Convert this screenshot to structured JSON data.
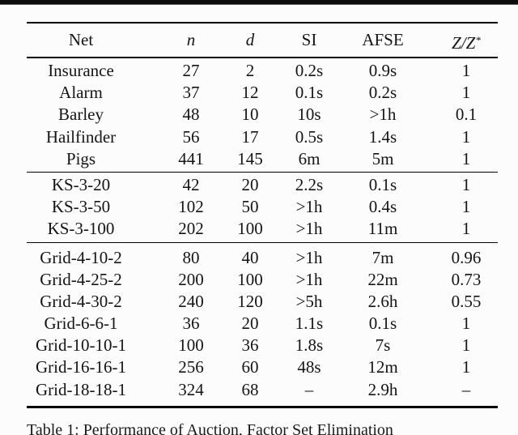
{
  "table": {
    "headers": [
      {
        "text": "Net",
        "style": "roman"
      },
      {
        "text": "n",
        "style": "italic"
      },
      {
        "text": "d",
        "style": "italic"
      },
      {
        "text": "SI",
        "style": "roman"
      },
      {
        "text": "AFSE",
        "style": "roman"
      },
      {
        "text": "Z/Z",
        "style": "italic",
        "sup": "*"
      }
    ],
    "groups": [
      {
        "rows": [
          [
            "Insurance",
            "27",
            "2",
            "0.2s",
            "0.9s",
            "1"
          ],
          [
            "Alarm",
            "37",
            "12",
            "0.1s",
            "0.2s",
            "1"
          ],
          [
            "Barley",
            "48",
            "10",
            "10s",
            ">1h",
            "0.1"
          ],
          [
            "Hailfinder",
            "56",
            "17",
            "0.5s",
            "1.4s",
            "1"
          ],
          [
            "Pigs",
            "441",
            "145",
            "6m",
            "5m",
            "1"
          ]
        ]
      },
      {
        "rows": [
          [
            "KS-3-20",
            "42",
            "20",
            "2.2s",
            "0.1s",
            "1"
          ],
          [
            "KS-3-50",
            "102",
            "50",
            ">1h",
            "0.4s",
            "1"
          ],
          [
            "KS-3-100",
            "202",
            "100",
            ">1h",
            "11m",
            "1"
          ]
        ]
      },
      {
        "rows": [
          [
            "Grid-4-10-2",
            "80",
            "40",
            ">1h",
            "7m",
            "0.96"
          ],
          [
            "Grid-4-25-2",
            "200",
            "100",
            ">1h",
            "22m",
            "0.73"
          ],
          [
            "Grid-4-30-2",
            "240",
            "120",
            ">5h",
            "2.6h",
            "0.55"
          ],
          [
            "Grid-6-6-1",
            "36",
            "20",
            "1.1s",
            "0.1s",
            "1"
          ],
          [
            "Grid-10-10-1",
            "100",
            "36",
            "1.8s",
            "7s",
            "1"
          ],
          [
            "Grid-16-16-1",
            "256",
            "60",
            "48s",
            "12m",
            "1"
          ],
          [
            "Grid-18-18-1",
            "324",
            "68",
            "–",
            "2.9h",
            "–"
          ]
        ]
      }
    ]
  },
  "caption": {
    "text": "Table 1: Performance of Auction, Factor Set Elimination"
  }
}
